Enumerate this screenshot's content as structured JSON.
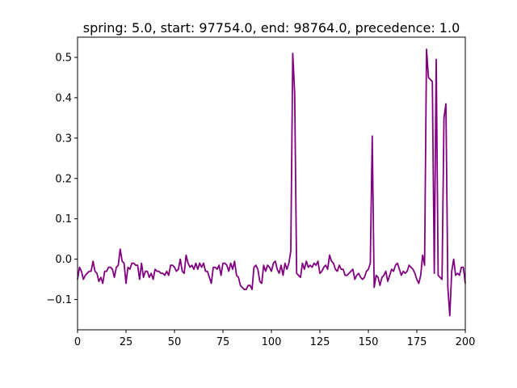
{
  "chart_data": {
    "type": "line",
    "title": "spring: 5.0, start: 97754.0, end: 98764.0, precedence: 1.0",
    "xlabel": "",
    "ylabel": "",
    "xlim": [
      0,
      200
    ],
    "ylim": [
      -0.175,
      0.55
    ],
    "xticks": [
      0,
      25,
      50,
      75,
      100,
      125,
      150,
      175,
      200
    ],
    "yticks": [
      -0.1,
      0.0,
      0.1,
      0.2,
      0.3,
      0.4,
      0.5
    ],
    "xtick_labels": [
      "0",
      "25",
      "50",
      "75",
      "100",
      "125",
      "150",
      "175",
      "200"
    ],
    "ytick_labels": [
      "−0.1",
      "0.0",
      "0.1",
      "0.2",
      "0.3",
      "0.4",
      "0.5"
    ],
    "grid": false,
    "series": [
      {
        "color": "#800080",
        "x": [
          0,
          1,
          2,
          3,
          4,
          5,
          6,
          7,
          8,
          9,
          10,
          11,
          12,
          13,
          14,
          15,
          16,
          17,
          18,
          19,
          20,
          21,
          22,
          23,
          24,
          25,
          26,
          27,
          28,
          29,
          30,
          31,
          32,
          33,
          34,
          35,
          36,
          37,
          38,
          39,
          40,
          41,
          42,
          43,
          44,
          45,
          46,
          47,
          48,
          49,
          50,
          51,
          52,
          53,
          54,
          55,
          56,
          57,
          58,
          59,
          60,
          61,
          62,
          63,
          64,
          65,
          66,
          67,
          68,
          69,
          70,
          71,
          72,
          73,
          74,
          75,
          76,
          77,
          78,
          79,
          80,
          81,
          82,
          83,
          84,
          85,
          86,
          87,
          88,
          89,
          90,
          91,
          92,
          93,
          94,
          95,
          96,
          97,
          98,
          99,
          100,
          101,
          102,
          103,
          104,
          105,
          106,
          107,
          108,
          109,
          110,
          111,
          112,
          113,
          114,
          115,
          116,
          117,
          118,
          119,
          120,
          121,
          122,
          123,
          124,
          125,
          126,
          127,
          128,
          129,
          130,
          131,
          132,
          133,
          134,
          135,
          136,
          137,
          138,
          139,
          140,
          141,
          142,
          143,
          144,
          145,
          146,
          147,
          148,
          149,
          150,
          151,
          152,
          153,
          154,
          155,
          156,
          157,
          158,
          159,
          160,
          161,
          162,
          163,
          164,
          165,
          166,
          167,
          168,
          169,
          170,
          171,
          172,
          173,
          174,
          175,
          176,
          177,
          178,
          179,
          180,
          181,
          182,
          183,
          184,
          185,
          186,
          187,
          188,
          189,
          190,
          191,
          192,
          193,
          194,
          195,
          196,
          197,
          198,
          199,
          200
        ],
        "y": [
          -0.05,
          -0.02,
          -0.03,
          -0.05,
          -0.04,
          -0.035,
          -0.03,
          -0.03,
          -0.005,
          -0.03,
          -0.035,
          -0.055,
          -0.045,
          -0.06,
          -0.03,
          -0.03,
          -0.02,
          -0.02,
          -0.025,
          -0.045,
          -0.02,
          -0.015,
          0.025,
          -0.005,
          -0.01,
          -0.06,
          -0.02,
          -0.025,
          -0.01,
          -0.01,
          -0.015,
          -0.015,
          -0.05,
          -0.01,
          -0.045,
          -0.03,
          -0.03,
          -0.045,
          -0.035,
          -0.05,
          -0.025,
          -0.03,
          -0.03,
          -0.035,
          -0.035,
          -0.04,
          -0.03,
          -0.04,
          -0.015,
          -0.015,
          -0.02,
          -0.03,
          -0.025,
          0.0,
          -0.03,
          -0.035,
          0.01,
          -0.01,
          -0.02,
          -0.015,
          -0.025,
          -0.01,
          -0.025,
          -0.01,
          -0.02,
          -0.01,
          -0.03,
          -0.03,
          -0.045,
          -0.06,
          -0.02,
          -0.02,
          -0.025,
          -0.015,
          -0.04,
          -0.01,
          -0.01,
          -0.015,
          -0.03,
          -0.01,
          -0.025,
          -0.005,
          -0.04,
          -0.045,
          -0.065,
          -0.07,
          -0.075,
          -0.075,
          -0.065,
          -0.065,
          -0.075,
          -0.02,
          -0.015,
          -0.025,
          -0.055,
          -0.06,
          -0.015,
          -0.03,
          -0.015,
          -0.02,
          -0.03,
          -0.01,
          -0.005,
          -0.025,
          -0.035,
          -0.015,
          -0.04,
          -0.01,
          -0.025,
          -0.01,
          0.02,
          0.51,
          0.41,
          -0.035,
          -0.04,
          -0.045,
          -0.01,
          -0.025,
          -0.005,
          -0.02,
          -0.015,
          -0.02,
          -0.01,
          -0.015,
          -0.005,
          -0.035,
          -0.03,
          -0.02,
          -0.015,
          -0.025,
          0.01,
          -0.005,
          -0.01,
          -0.025,
          -0.03,
          -0.015,
          -0.025,
          -0.025,
          -0.04,
          -0.04,
          -0.035,
          -0.03,
          -0.025,
          -0.05,
          -0.04,
          -0.035,
          -0.045,
          -0.05,
          -0.045,
          -0.03,
          -0.025,
          -0.01,
          0.305,
          -0.07,
          -0.04,
          -0.045,
          -0.065,
          -0.045,
          -0.04,
          -0.03,
          -0.055,
          -0.04,
          -0.025,
          -0.03,
          -0.015,
          -0.01,
          -0.025,
          -0.04,
          -0.03,
          -0.035,
          -0.03,
          -0.015,
          -0.02,
          -0.025,
          -0.035,
          -0.05,
          -0.06,
          -0.04,
          0.01,
          -0.015,
          0.52,
          0.45,
          0.445,
          0.44,
          -0.035,
          0.495,
          -0.04,
          -0.045,
          -0.05,
          0.35,
          0.385,
          -0.07,
          -0.14,
          -0.03,
          0.0,
          -0.04,
          -0.035,
          -0.04,
          -0.02,
          -0.02,
          -0.06
        ]
      }
    ]
  }
}
